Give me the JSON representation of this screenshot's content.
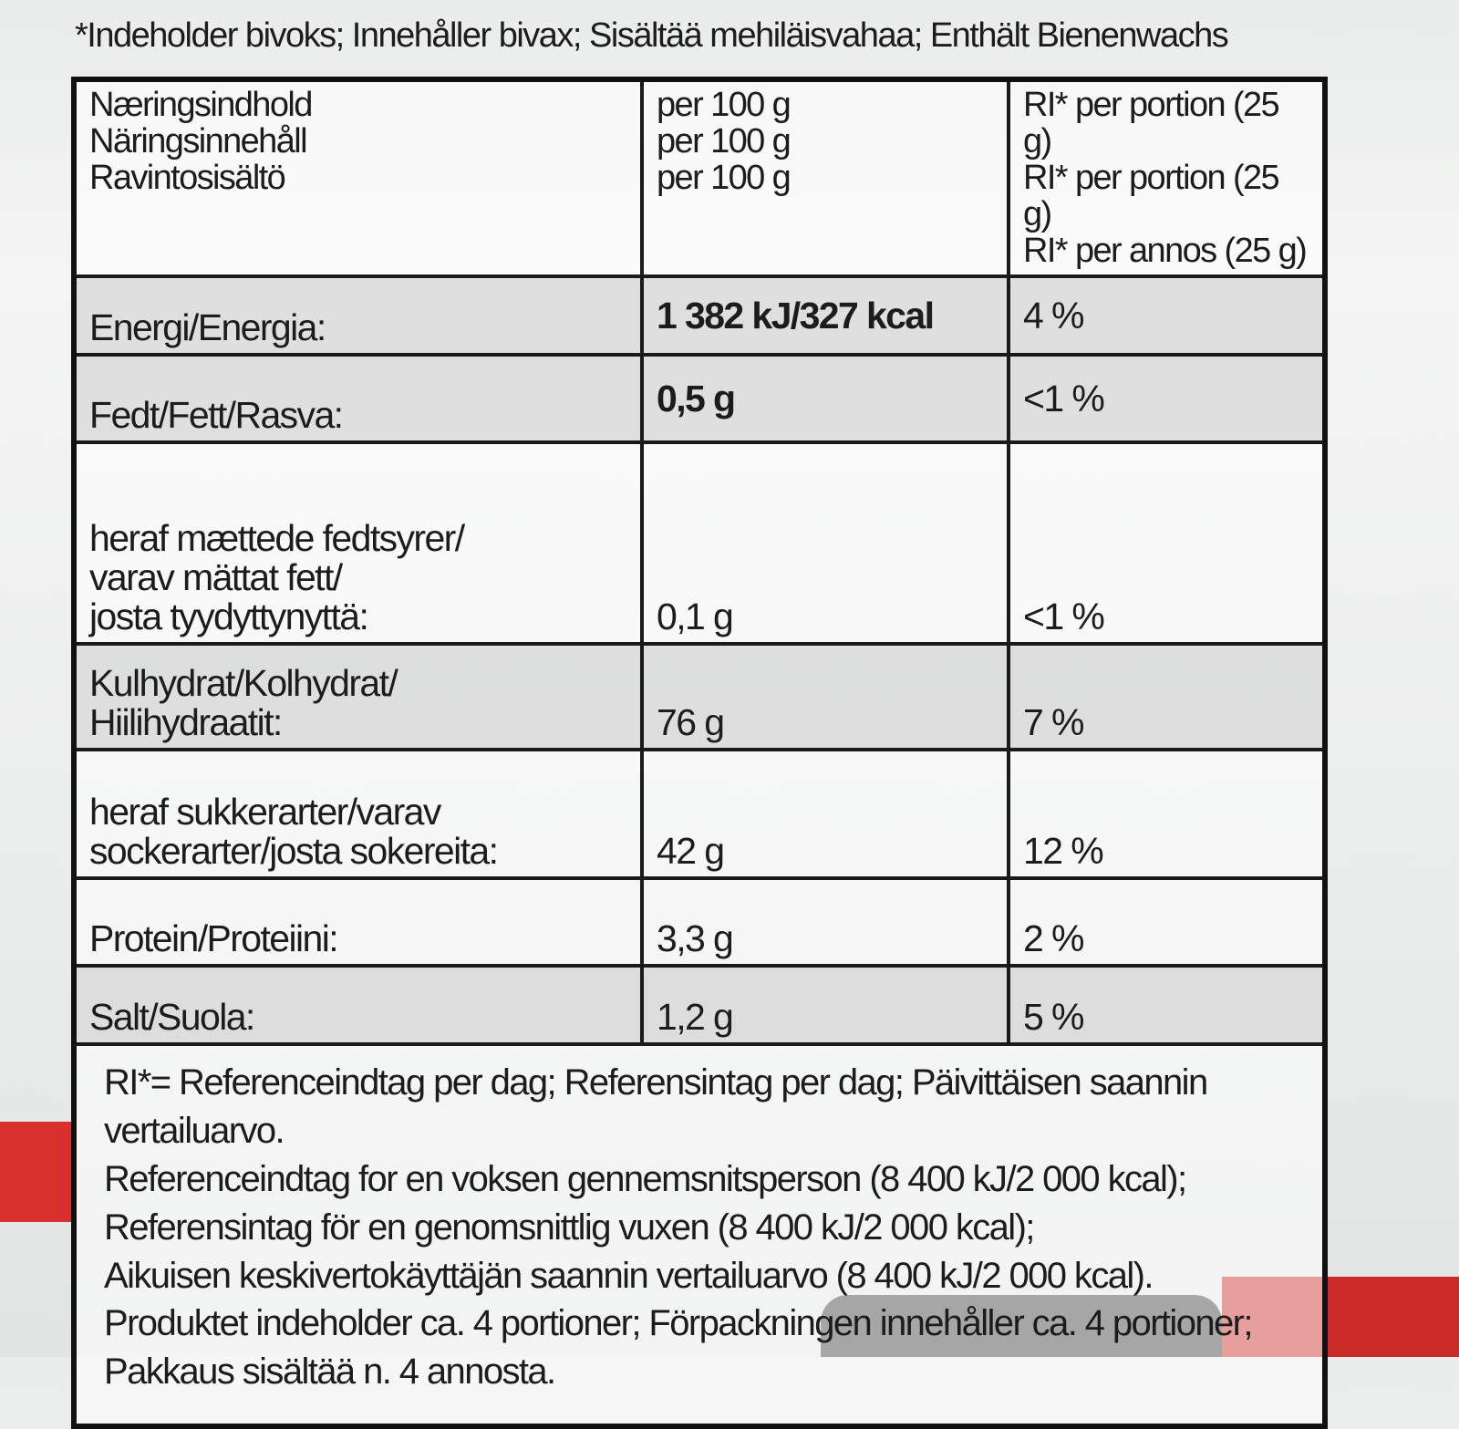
{
  "top_note": "*Indeholder bivoks; Innehåller bivax; Sisältää mehiläisvahaa; Enthält Bienenwachs",
  "header": {
    "col1": [
      "Næringsindhold",
      "Näringsinnehåll",
      "Ravintosisältö"
    ],
    "col2": [
      "per 100 g",
      "per 100 g",
      "per 100 g"
    ],
    "col3": [
      "RI* per portion (25 g)",
      "RI* per portion (25 g)",
      "RI* per annos (25 g)"
    ]
  },
  "rows": [
    {
      "label": [
        "Energi/Energia:"
      ],
      "per100": "1 382 kJ/327 kcal",
      "ri": "4 %",
      "shade": true
    },
    {
      "label": [
        "Fedt/Fett/Rasva:"
      ],
      "per100": "0,5 g",
      "ri": "<1 %",
      "shade": true
    },
    {
      "label": [
        "heraf mættede fedtsyrer/",
        "varav mättat fett/",
        "josta tyydyttynyttä:"
      ],
      "per100": "0,1 g",
      "ri": "<1 %",
      "shade": false
    },
    {
      "label": [
        "Kulhydrat/Kolhydrat/",
        "Hiilihydraatit:"
      ],
      "per100": "76 g",
      "ri": "7 %",
      "shade": true
    },
    {
      "label": [
        "heraf sukkerarter/varav",
        "sockerarter/josta sokereita:"
      ],
      "per100": "42 g",
      "ri": "12 %",
      "shade": false
    },
    {
      "label": [
        "Protein/Proteiini:"
      ],
      "per100": "3,3 g",
      "ri": "2 %",
      "shade": false
    },
    {
      "label": [
        "Salt/Suola:"
      ],
      "per100": "1,2 g",
      "ri": "5 %",
      "shade": true
    }
  ],
  "footnote": [
    "RI*= Referenceindtag per dag; Referensintag per dag; Päivittäisen saannin vertailuarvo.",
    "Referenceindtag for en voksen gennemsnitsperson (8 400 kJ/2 000 kcal);",
    "Referensintag för en genomsnittlig vuxen (8 400 kJ/2 000 kcal);",
    "Aikuisen keskivertokäyttäjän saannin vertailuarvo (8 400 kJ/2 000 kcal).",
    "Produktet indeholder ca. 4 portioner; Förpackningen innehåller ca. 4 portioner; Pakkaus sisältää n. 4 annosta."
  ]
}
